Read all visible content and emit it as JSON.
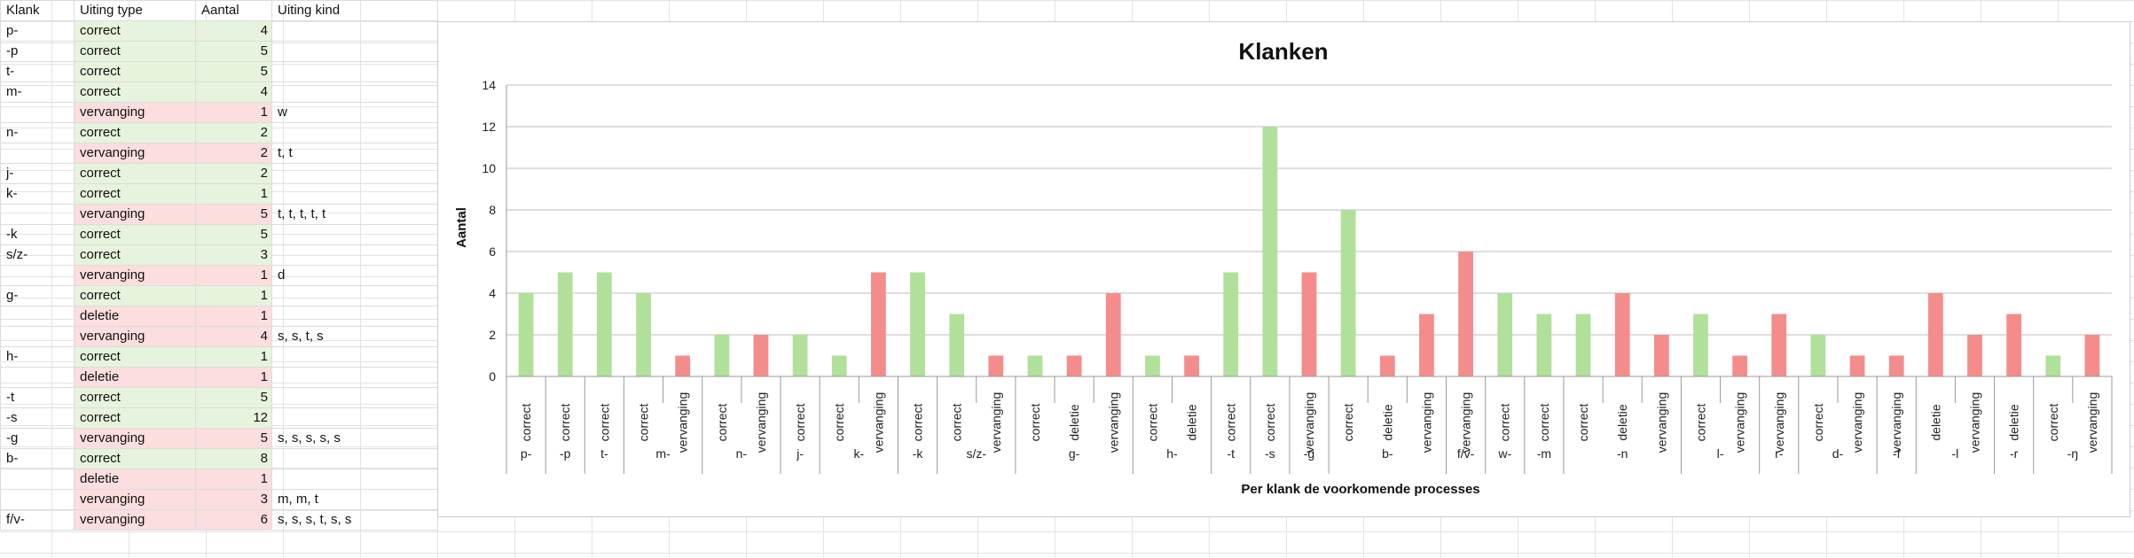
{
  "table": {
    "headers": [
      "Klank",
      "Uiting type",
      "Aantal",
      "Uiting kind"
    ],
    "rows": [
      [
        "p-",
        "correct",
        "4",
        ""
      ],
      [
        "-p",
        "correct",
        "5",
        ""
      ],
      [
        "t-",
        "correct",
        "5",
        ""
      ],
      [
        "m-",
        "correct",
        "4",
        ""
      ],
      [
        "",
        "vervanging",
        "1",
        "w"
      ],
      [
        "n-",
        "correct",
        "2",
        ""
      ],
      [
        "",
        "vervanging",
        "2",
        "t, t"
      ],
      [
        "j-",
        "correct",
        "2",
        ""
      ],
      [
        "k-",
        "correct",
        "1",
        ""
      ],
      [
        "",
        "vervanging",
        "5",
        "t, t, t, t, t"
      ],
      [
        "-k",
        "correct",
        "5",
        ""
      ],
      [
        "s/z-",
        "correct",
        "3",
        ""
      ],
      [
        "",
        "vervanging",
        "1",
        "d"
      ],
      [
        "g-",
        "correct",
        "1",
        ""
      ],
      [
        "",
        "deletie",
        "1",
        ""
      ],
      [
        "",
        "vervanging",
        "4",
        "s, s, t, s"
      ],
      [
        "h-",
        "correct",
        "1",
        ""
      ],
      [
        "",
        "deletie",
        "1",
        ""
      ],
      [
        "-t",
        "correct",
        "5",
        ""
      ],
      [
        "-s",
        "correct",
        "12",
        ""
      ],
      [
        "-g",
        "vervanging",
        "5",
        "s, s, s, s, s"
      ],
      [
        "b-",
        "correct",
        "8",
        ""
      ],
      [
        "",
        "deletie",
        "1",
        ""
      ],
      [
        "",
        "vervanging",
        "3",
        "m, m, t"
      ],
      [
        "f/v-",
        "vervanging",
        "6",
        "s, s, s, t, s, s"
      ]
    ]
  },
  "colors": {
    "correct": "#b0e09a",
    "error": "#f48c8c",
    "correct_cell": "#e6f4dd",
    "error_cell": "#fbdedd"
  },
  "chart_data": {
    "type": "bar",
    "title": "Klanken",
    "xlabel": "Per klank de voorkomende processes",
    "ylabel": "Aantal",
    "ylim": [
      0,
      14
    ],
    "yticks": [
      0,
      2,
      4,
      6,
      8,
      10,
      12,
      14
    ],
    "grid": true,
    "legend": "none",
    "groups": [
      {
        "klank": "p-",
        "bars": [
          {
            "label": "correct",
            "value": 4
          }
        ]
      },
      {
        "klank": "-p",
        "bars": [
          {
            "label": "correct",
            "value": 5
          }
        ]
      },
      {
        "klank": "t-",
        "bars": [
          {
            "label": "correct",
            "value": 5
          }
        ]
      },
      {
        "klank": "m-",
        "bars": [
          {
            "label": "correct",
            "value": 4
          },
          {
            "label": "vervanging",
            "value": 1
          }
        ]
      },
      {
        "klank": "n-",
        "bars": [
          {
            "label": "correct",
            "value": 2
          },
          {
            "label": "vervanging",
            "value": 2
          }
        ]
      },
      {
        "klank": "j-",
        "bars": [
          {
            "label": "correct",
            "value": 2
          }
        ]
      },
      {
        "klank": "k-",
        "bars": [
          {
            "label": "correct",
            "value": 1
          },
          {
            "label": "vervanging",
            "value": 5
          }
        ]
      },
      {
        "klank": "-k",
        "bars": [
          {
            "label": "correct",
            "value": 5
          }
        ]
      },
      {
        "klank": "s/z-",
        "bars": [
          {
            "label": "correct",
            "value": 3
          },
          {
            "label": "vervanging",
            "value": 1
          }
        ]
      },
      {
        "klank": "g-",
        "bars": [
          {
            "label": "correct",
            "value": 1
          },
          {
            "label": "deletie",
            "value": 1
          },
          {
            "label": "vervanging",
            "value": 4
          }
        ]
      },
      {
        "klank": "h-",
        "bars": [
          {
            "label": "correct",
            "value": 1
          },
          {
            "label": "deletie",
            "value": 1
          }
        ]
      },
      {
        "klank": "-t",
        "bars": [
          {
            "label": "correct",
            "value": 5
          }
        ]
      },
      {
        "klank": "-s",
        "bars": [
          {
            "label": "correct",
            "value": 12
          }
        ]
      },
      {
        "klank": "-g",
        "bars": [
          {
            "label": "vervanging",
            "value": 5
          }
        ]
      },
      {
        "klank": "b-",
        "bars": [
          {
            "label": "correct",
            "value": 8
          },
          {
            "label": "deletie",
            "value": 1
          },
          {
            "label": "vervanging",
            "value": 3
          }
        ]
      },
      {
        "klank": "f/v-",
        "bars": [
          {
            "label": "vervanging",
            "value": 6
          }
        ]
      },
      {
        "klank": "w-",
        "bars": [
          {
            "label": "correct",
            "value": 4
          }
        ]
      },
      {
        "klank": "-m",
        "bars": [
          {
            "label": "correct",
            "value": 3
          }
        ]
      },
      {
        "klank": "-n",
        "bars": [
          {
            "label": "correct",
            "value": 3
          },
          {
            "label": "deletie",
            "value": 4
          },
          {
            "label": "vervanging",
            "value": 2
          }
        ]
      },
      {
        "klank": "l-",
        "bars": [
          {
            "label": "correct",
            "value": 3
          },
          {
            "label": "vervanging",
            "value": 1
          }
        ]
      },
      {
        "klank": "r-",
        "bars": [
          {
            "label": "vervanging",
            "value": 3
          }
        ]
      },
      {
        "klank": "d-",
        "bars": [
          {
            "label": "correct",
            "value": 2
          },
          {
            "label": "vervanging",
            "value": 1
          }
        ]
      },
      {
        "klank": "-f",
        "bars": [
          {
            "label": "vervanging",
            "value": 1
          }
        ]
      },
      {
        "klank": "-l",
        "bars": [
          {
            "label": "deletie",
            "value": 4
          },
          {
            "label": "vervanging",
            "value": 2
          }
        ]
      },
      {
        "klank": "-r",
        "bars": [
          {
            "label": "deletie",
            "value": 3
          }
        ]
      },
      {
        "klank": "-ŋ",
        "bars": [
          {
            "label": "correct",
            "value": 1
          },
          {
            "label": "vervanging",
            "value": 2
          }
        ]
      }
    ]
  }
}
